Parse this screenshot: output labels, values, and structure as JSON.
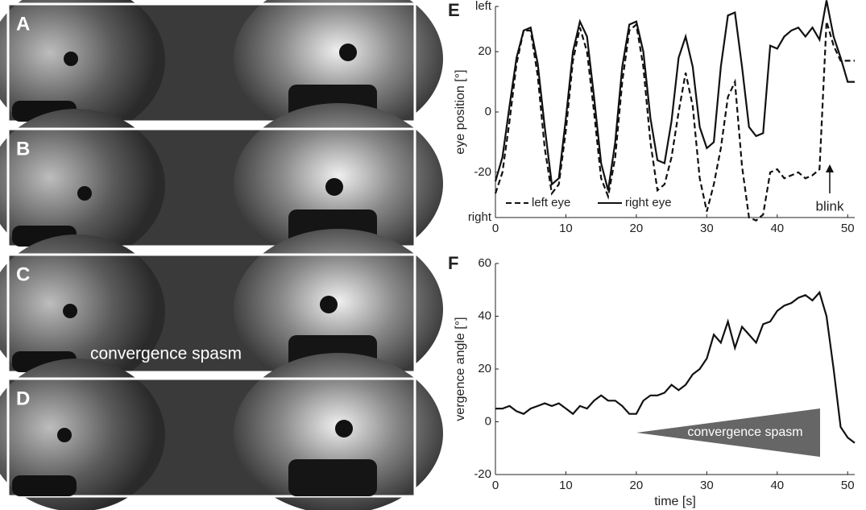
{
  "panels": [
    {
      "label": "A"
    },
    {
      "label": "B"
    },
    {
      "label": "C",
      "annotation": "convergence spasm"
    },
    {
      "label": "D"
    }
  ],
  "chart_data": [
    {
      "type": "line",
      "panel_label": "E",
      "ylabel": "eye position [°]",
      "legend": "lower left",
      "annotation": "blink",
      "x": [
        0,
        1,
        2,
        3,
        4,
        5,
        6,
        7,
        8,
        9,
        10,
        11,
        12,
        13,
        14,
        15,
        16,
        17,
        18,
        19,
        20,
        21,
        22,
        23,
        24,
        25,
        26,
        27,
        28,
        29,
        30,
        31,
        32,
        33,
        34,
        35,
        36,
        37,
        38,
        39,
        40,
        41,
        42,
        43,
        44,
        45,
        46,
        47,
        48,
        49,
        50,
        51
      ],
      "series": [
        {
          "name": "left eye",
          "color": "#111111",
          "line_style": "dashed",
          "values": [
            -27,
            -20,
            -3,
            16,
            27,
            27,
            12,
            -12,
            -27,
            -24,
            -6,
            17,
            28,
            20,
            0,
            -22,
            -28,
            -15,
            10,
            27,
            29,
            15,
            -10,
            -26,
            -24,
            -15,
            0,
            13,
            2,
            -22,
            -33,
            -24,
            -12,
            5,
            10,
            -18,
            -35,
            -36,
            -34,
            -20,
            -19,
            -22,
            -21,
            -20,
            -22,
            -21,
            -19,
            30,
            22,
            17,
            17,
            17
          ]
        },
        {
          "name": "right eye",
          "color": "#111111",
          "line_style": "solid",
          "values": [
            -23,
            -15,
            2,
            18,
            27,
            28,
            16,
            -5,
            -24,
            -22,
            -2,
            20,
            30,
            25,
            5,
            -17,
            -26,
            -10,
            15,
            29,
            30,
            20,
            -2,
            -16,
            -17,
            -3,
            18,
            25,
            15,
            -5,
            -12,
            -10,
            15,
            32,
            33,
            15,
            -5,
            -8,
            -7,
            22,
            21,
            25,
            27,
            28,
            25,
            28,
            24,
            37,
            25,
            18,
            10,
            10
          ]
        }
      ],
      "xlim": [
        0,
        51
      ],
      "xticks": [
        0,
        10,
        20,
        30,
        40,
        50
      ],
      "ylim": [
        -35,
        35
      ],
      "yticks": [
        {
          "value": 35,
          "label": "left"
        },
        20,
        0,
        -20,
        {
          "value": -35,
          "label": "right"
        }
      ]
    },
    {
      "type": "line",
      "panel_label": "F",
      "ylabel": "vergence angle [°]",
      "xlabel": "time [s]",
      "annotation": "convergence spasm",
      "x": [
        0,
        1,
        2,
        3,
        4,
        5,
        6,
        7,
        8,
        9,
        10,
        11,
        12,
        13,
        14,
        15,
        16,
        17,
        18,
        19,
        20,
        21,
        22,
        23,
        24,
        25,
        26,
        27,
        28,
        29,
        30,
        31,
        32,
        33,
        34,
        35,
        36,
        37,
        38,
        39,
        40,
        41,
        42,
        43,
        44,
        45,
        46,
        47,
        48,
        49,
        50,
        51
      ],
      "series": [
        {
          "color": "#111111",
          "line_style": "solid",
          "values": [
            5,
            5,
            6,
            4,
            3,
            5,
            6,
            7,
            6,
            7,
            5,
            3,
            6,
            5,
            8,
            10,
            8,
            8,
            6,
            3,
            3,
            8,
            10,
            10,
            11,
            14,
            12,
            14,
            18,
            20,
            24,
            33,
            30,
            38,
            28,
            36,
            33,
            30,
            37,
            38,
            42,
            44,
            45,
            47,
            48,
            46,
            49,
            40,
            20,
            -2,
            -6,
            -8
          ]
        }
      ],
      "xlim": [
        0,
        51
      ],
      "xticks": [
        0,
        10,
        20,
        30,
        40,
        50
      ],
      "ylim": [
        -20,
        60
      ],
      "yticks": [
        -20,
        0,
        20,
        40,
        60
      ]
    }
  ]
}
